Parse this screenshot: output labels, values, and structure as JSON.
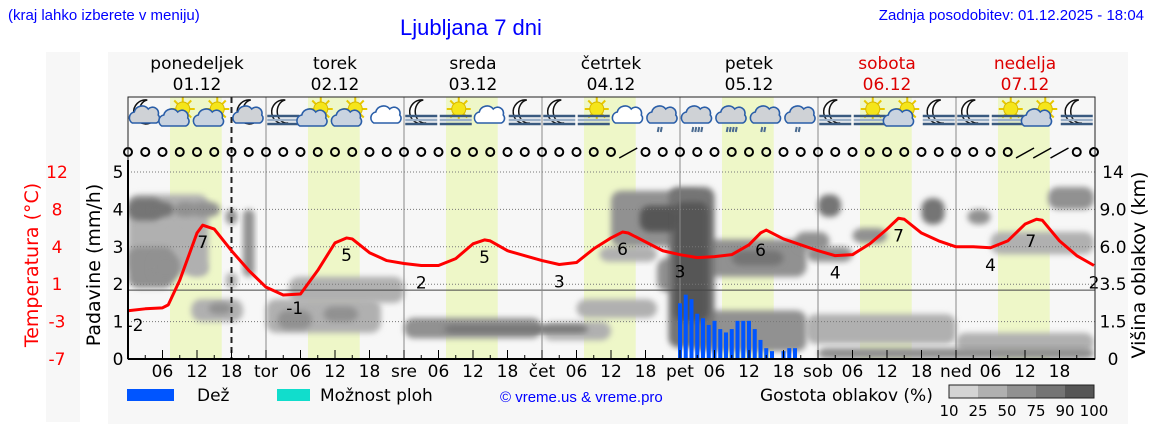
{
  "header": {
    "menu_hint": "(kraj lahko izberete v meniju)",
    "title": "Ljubljana 7 dni",
    "updated": "Zadnja posodobitev: 01.12.2025 - 18:04"
  },
  "colors": {
    "temperature": "#ff0000",
    "rain": "#0055ff",
    "showers": "#11ddcc",
    "daylight": "#eef7c8",
    "link": "#0000ff",
    "weekend": "#dd0000"
  },
  "chart_data": {
    "type": "line",
    "days": [
      {
        "name": "ponedeljek",
        "date": "01.12",
        "short": "",
        "weekend": false
      },
      {
        "name": "torek",
        "date": "02.12",
        "short": "tor",
        "weekend": false
      },
      {
        "name": "sreda",
        "date": "03.12",
        "short": "sre",
        "weekend": false
      },
      {
        "name": "četrtek",
        "date": "04.12",
        "short": "čet",
        "weekend": false
      },
      {
        "name": "petek",
        "date": "05.12",
        "short": "pet",
        "weekend": false
      },
      {
        "name": "sobota",
        "date": "06.12",
        "short": "sob",
        "weekend": true
      },
      {
        "name": "nedelja",
        "date": "07.12",
        "short": "ned",
        "weekend": true
      }
    ],
    "hour_ticks": [
      "06",
      "12",
      "18"
    ],
    "current_time_hour": 18,
    "daylight_hours": [
      7.3,
      16.3
    ],
    "axes": {
      "temperature": {
        "label": "Temperatura (°C)",
        "ticks": [
          "12",
          "8",
          "4",
          "1",
          "-3",
          "-7"
        ],
        "range": [
          -7,
          12
        ]
      },
      "precipitation": {
        "label": "Padavine (mm/h)",
        "ticks": [
          "0",
          "1",
          "2",
          "3",
          "4",
          "5"
        ],
        "range": [
          0,
          5
        ]
      },
      "cloud_height": {
        "label": "Višina oblakov (km)",
        "ticks": [
          "0",
          "1.5",
          "3.5",
          "6.0",
          "9.0",
          "14"
        ]
      }
    },
    "temperature": {
      "hours": [
        0,
        3,
        6,
        7,
        9,
        12,
        13,
        15,
        18,
        21,
        24,
        27,
        30,
        33,
        36,
        38,
        39,
        42,
        45,
        48,
        51,
        54,
        57,
        60,
        62,
        63,
        66,
        69,
        72,
        75,
        78,
        81,
        84,
        86,
        87,
        90,
        93,
        96,
        99,
        102,
        105,
        108,
        110,
        111,
        114,
        117,
        120,
        123,
        126,
        129,
        132,
        134,
        135,
        138,
        141,
        144,
        147,
        150,
        153,
        156,
        158,
        159,
        162,
        165,
        168
      ],
      "values": [
        -2.1,
        -1.9,
        -1.8,
        -1.5,
        1.0,
        5.8,
        6.6,
        6.2,
        4.0,
        2.0,
        0.3,
        -0.5,
        -0.4,
        2.0,
        4.8,
        5.3,
        5.2,
        3.8,
        3.0,
        2.7,
        2.5,
        2.5,
        3.2,
        4.7,
        5.1,
        5.0,
        4.0,
        3.5,
        3.0,
        2.6,
        2.8,
        4.2,
        5.3,
        5.9,
        5.8,
        4.9,
        4.0,
        3.6,
        3.3,
        3.4,
        3.6,
        4.6,
        5.8,
        6.1,
        5.2,
        4.6,
        4.0,
        3.5,
        3.6,
        4.7,
        6.2,
        7.3,
        7.2,
        5.8,
        5.0,
        4.4,
        4.4,
        4.3,
        5.0,
        6.7,
        7.2,
        7.1,
        5.0,
        3.5,
        2.5
      ],
      "labels": [
        {
          "hour": 0,
          "text": "-2"
        },
        {
          "hour": 13,
          "text": "7"
        },
        {
          "hour": 29,
          "text": "-1"
        },
        {
          "hour": 38,
          "text": "5"
        },
        {
          "hour": 51,
          "text": "2"
        },
        {
          "hour": 62,
          "text": "5"
        },
        {
          "hour": 75,
          "text": "3"
        },
        {
          "hour": 86,
          "text": "6"
        },
        {
          "hour": 96,
          "text": "3"
        },
        {
          "hour": 110,
          "text": "6"
        },
        {
          "hour": 123,
          "text": "4"
        },
        {
          "hour": 134,
          "text": "7"
        },
        {
          "hour": 150,
          "text": "4"
        },
        {
          "hour": 157,
          "text": "7"
        },
        {
          "hour": 168,
          "text": "2"
        }
      ]
    },
    "precipitation": {
      "start_hour": 96,
      "values_mm_h": [
        1.49,
        1.72,
        1.6,
        1.21,
        1.09,
        0.91,
        1.02,
        0.8,
        0.71,
        0.8,
        1.02,
        1.02,
        1.02,
        0.8,
        0.51,
        0.29,
        0.21,
        0,
        0.21,
        0.29,
        0.29
      ]
    },
    "cloud_density": [
      [
        0,
        14,
        2.3,
        4.4,
        40
      ],
      [
        0,
        6,
        3.7,
        4.3,
        75
      ],
      [
        4,
        8,
        3.8,
        4.2,
        80
      ],
      [
        8,
        12,
        3.8,
        4.2,
        70
      ],
      [
        11,
        16,
        3.8,
        4.2,
        60
      ],
      [
        0,
        8,
        1.9,
        3.0,
        50
      ],
      [
        4,
        9,
        2.1,
        2.8,
        65
      ],
      [
        7,
        9,
        2.8,
        3.4,
        45
      ],
      [
        10,
        14,
        2.2,
        2.6,
        40
      ],
      [
        11,
        20,
        1.0,
        1.6,
        40
      ],
      [
        14,
        18,
        1.2,
        1.5,
        60
      ],
      [
        17,
        19,
        3.6,
        4.0,
        70
      ],
      [
        20,
        22,
        2.2,
        4.0,
        60
      ],
      [
        17,
        19,
        1.9,
        2.3,
        45
      ],
      [
        24,
        44,
        0.7,
        1.6,
        35
      ],
      [
        26,
        32,
        0.8,
        1.3,
        60
      ],
      [
        28,
        48,
        1.5,
        2.2,
        30
      ],
      [
        34,
        40,
        1.0,
        1.4,
        55
      ],
      [
        48,
        72,
        0.55,
        1.1,
        50
      ],
      [
        55,
        80,
        0.7,
        0.9,
        75
      ],
      [
        72,
        84,
        0.5,
        1.0,
        45
      ],
      [
        78,
        92,
        1.1,
        1.6,
        35
      ],
      [
        84,
        100,
        3.0,
        4.5,
        70
      ],
      [
        89,
        96,
        3.4,
        4.1,
        90
      ],
      [
        94,
        102,
        0.3,
        4.6,
        85
      ],
      [
        95,
        101,
        1.0,
        4.2,
        100
      ],
      [
        92,
        98,
        1.8,
        2.7,
        70
      ],
      [
        82,
        92,
        2.6,
        3.0,
        40
      ],
      [
        100,
        118,
        2.2,
        3.2,
        55
      ],
      [
        105,
        114,
        2.5,
        2.9,
        75
      ],
      [
        98,
        118,
        0.2,
        1.3,
        55
      ],
      [
        118,
        144,
        0.4,
        1.2,
        40
      ],
      [
        118,
        126,
        2.6,
        3.0,
        55
      ],
      [
        120,
        124,
        3.8,
        4.4,
        85
      ],
      [
        116,
        122,
        2.9,
        3.4,
        60
      ],
      [
        126,
        132,
        3.1,
        3.5,
        50
      ],
      [
        138,
        142,
        3.6,
        4.3,
        75
      ],
      [
        146,
        150,
        3.6,
        4.0,
        50
      ],
      [
        120,
        168,
        0.0,
        0.3,
        70
      ],
      [
        144,
        168,
        0.2,
        0.7,
        45
      ],
      [
        160,
        168,
        4.0,
        4.6,
        65
      ],
      [
        150,
        168,
        2.8,
        3.4,
        30
      ]
    ],
    "weather_icons": [
      "moon-cloud",
      "sun-cloud",
      "sun-cloud",
      "moon-cloud",
      "moon-fog",
      "sun-cloud",
      "sun-cloud",
      "cloud",
      "moon-fog",
      "sun-fog",
      "cloud",
      "moon-fog",
      "moon-fog",
      "sun-fog",
      "cloud",
      "cloud-light-rain",
      "cloud-heavy-rain",
      "cloud-heavy-rain",
      "cloud-light-rain",
      "cloud-light-rain",
      "moon-fog",
      "sun-fog",
      "sun-cloud",
      "moon-fog",
      "moon-fog",
      "sun-fog",
      "sun-cloud",
      "moon-fog"
    ],
    "wind_barb_hours": [
      87,
      156,
      159,
      162
    ]
  },
  "legend": {
    "rain": "Dež",
    "showers": "Možnost ploh",
    "copyright": "© vreme.us & vreme.pro",
    "cloud_density_label": "Gostota oblakov (%)",
    "cloud_density_ticks": [
      "10",
      "25",
      "50",
      "75",
      "90",
      "100"
    ],
    "cloud_density_colors": [
      "#d4d4d4",
      "#b0b0b0",
      "#919191",
      "#747474",
      "#565656"
    ]
  }
}
